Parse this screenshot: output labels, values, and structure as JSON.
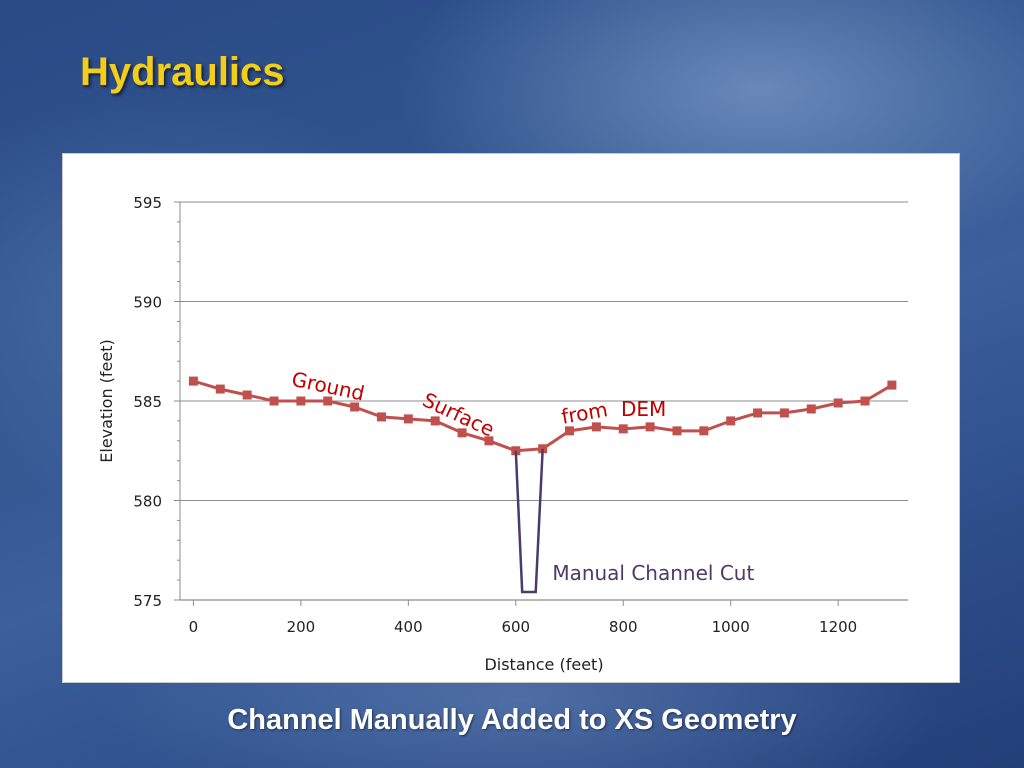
{
  "slide": {
    "title": "Hydraulics",
    "caption": "Channel Manually Added to XS Geometry"
  },
  "chart_data": {
    "type": "line",
    "xlabel": "Distance (feet)",
    "ylabel": "Elevation (feet)",
    "xlim": [
      -25,
      1330
    ],
    "ylim": [
      575,
      595
    ],
    "xticks": [
      0,
      200,
      400,
      600,
      800,
      1000,
      1200
    ],
    "yticks": [
      575,
      580,
      585,
      590,
      595
    ],
    "grid": true,
    "colors": {
      "ground": "#c0504d",
      "channel": "#4b3a6a"
    },
    "series": [
      {
        "role": "ground",
        "markers": "square",
        "x": [
          0,
          50,
          100,
          150,
          200,
          250,
          300,
          350,
          400,
          450,
          500,
          550,
          600,
          650,
          700,
          750,
          800,
          850,
          900,
          950,
          1000,
          1050,
          1100,
          1150,
          1200,
          1250,
          1300
        ],
        "y": [
          586.0,
          585.6,
          585.3,
          585.0,
          585.0,
          585.0,
          584.7,
          584.2,
          584.1,
          584.0,
          583.4,
          583.0,
          582.5,
          582.6,
          583.5,
          583.7,
          583.6,
          583.7,
          583.5,
          583.5,
          584.0,
          584.4,
          584.4,
          584.6,
          584.9,
          585.0,
          585.8
        ]
      },
      {
        "role": "channel",
        "x": [
          600,
          612,
          637,
          650
        ],
        "y": [
          582.5,
          575.4,
          575.4,
          582.6
        ]
      }
    ],
    "annotations": [
      {
        "text": "Ground",
        "x": 248,
        "y": 585.4,
        "rotate": 12,
        "color": "#c00000"
      },
      {
        "text": "Surface",
        "x": 488,
        "y": 584.0,
        "rotate": 25,
        "color": "#c00000"
      },
      {
        "text": "from",
        "x": 730,
        "y": 584.05,
        "rotate": -10,
        "color": "#c00000"
      },
      {
        "text": "DEM",
        "x": 838,
        "y": 584.25,
        "rotate": 0,
        "color": "#c00000"
      },
      {
        "text": "Manual Channel Cut",
        "x": 668,
        "y": 576.0,
        "rotate": 0,
        "color": "#4b3a6a"
      }
    ]
  }
}
